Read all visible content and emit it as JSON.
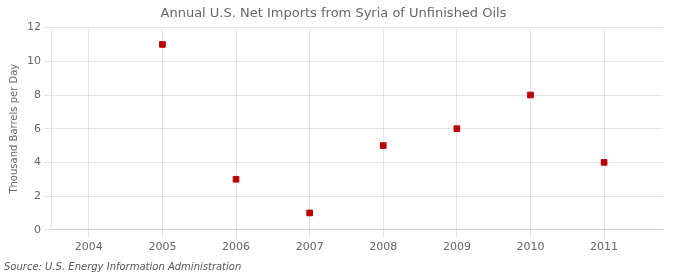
{
  "chart_data": {
    "type": "scatter",
    "title": "Annual U.S. Net Imports from Syria of Unfinished Oils",
    "ylabel": "Thousand Barrels per Day",
    "annotation": "Source: U.S. Energy Information Administration",
    "x": [
      2005,
      2006,
      2007,
      2008,
      2009,
      2010,
      2011
    ],
    "values": [
      11,
      3,
      1,
      5,
      6,
      8,
      4
    ],
    "color": "#bb0000",
    "marker": "square",
    "xlim": [
      2003.5,
      2011.8
    ],
    "ylim": [
      0,
      12
    ],
    "xticks": [
      2004,
      2005,
      2006,
      2007,
      2008,
      2009,
      2010,
      2011
    ],
    "yticks": [
      0,
      2,
      4,
      6,
      8,
      10,
      12
    ],
    "grid": true
  }
}
